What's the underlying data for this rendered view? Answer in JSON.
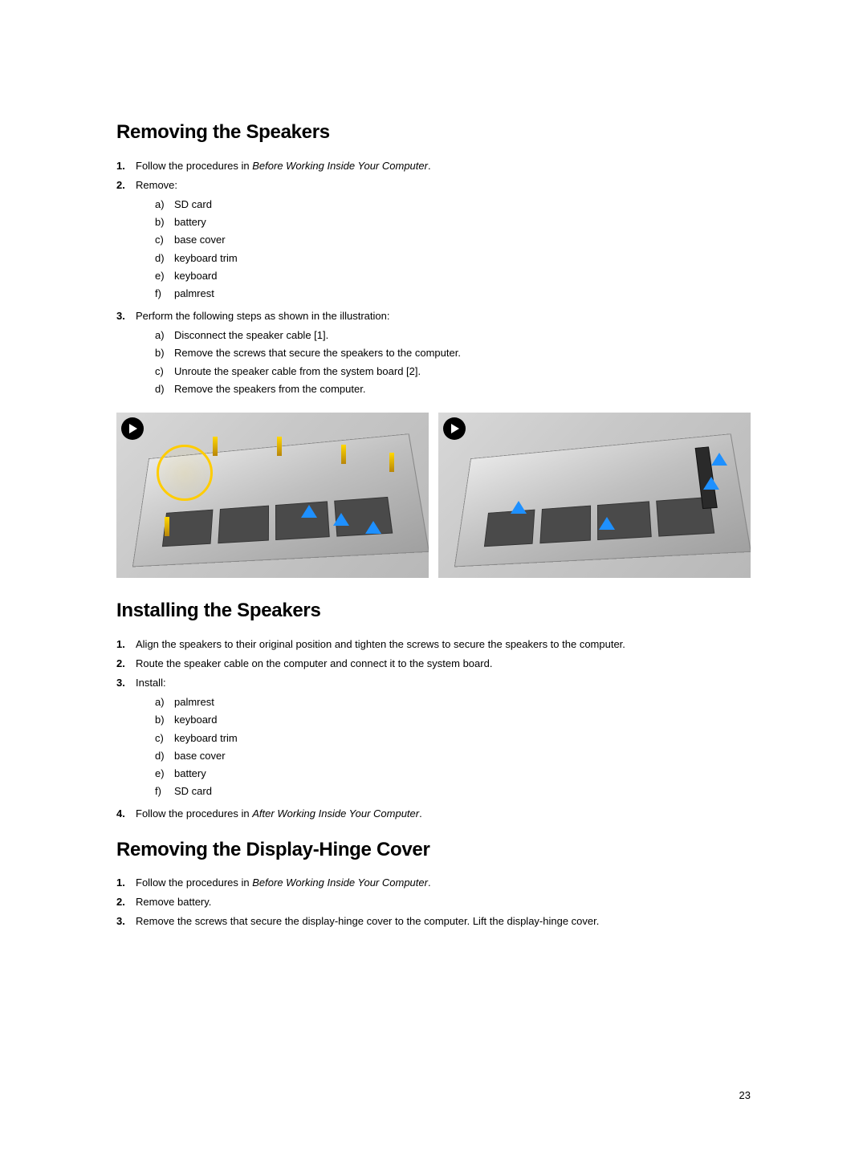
{
  "pageNumber": "23",
  "section1": {
    "heading": "Removing the Speakers",
    "step1_pre": "Follow the procedures in ",
    "step1_italic": "Before Working Inside Your Computer",
    "step1_post": ".",
    "step2": "Remove:",
    "step2_sub": {
      "a": "SD card",
      "b": "battery",
      "c": "base cover",
      "d": "keyboard trim",
      "e": "keyboard",
      "f": "palmrest"
    },
    "step3": "Perform the following steps as shown in the illustration:",
    "step3_sub": {
      "a": "Disconnect the speaker cable [1].",
      "b": "Remove the screws that secure the speakers to the computer.",
      "c": "Unroute the speaker cable from the system board [2].",
      "d": "Remove the speakers from the computer."
    }
  },
  "section2": {
    "heading": "Installing the Speakers",
    "step1": "Align the speakers to their original position and tighten the screws to secure the speakers to the computer.",
    "step2": "Route the speaker cable on the computer and connect it to the system board.",
    "step3": "Install:",
    "step3_sub": {
      "a": "palmrest",
      "b": "keyboard",
      "c": "keyboard trim",
      "d": "base cover",
      "e": "battery",
      "f": "SD card"
    },
    "step4_pre": "Follow the procedures in ",
    "step4_italic": "After Working Inside Your Computer",
    "step4_post": "."
  },
  "section3": {
    "heading": "Removing the Display-Hinge Cover",
    "step1_pre": "Follow the procedures in ",
    "step1_italic": "Before Working Inside Your Computer",
    "step1_post": ".",
    "step2": "Remove battery.",
    "step3": "Remove the screws that secure the display-hinge cover to the computer. Lift the display-hinge cover."
  },
  "figure": {
    "type": "illustration",
    "desc": "Two-panel hardware diagram",
    "arrow_color": "#1e90ff",
    "highlight_color": "#ffcc00",
    "screw_color": "#ffd700",
    "background": "#d0d0d0"
  }
}
